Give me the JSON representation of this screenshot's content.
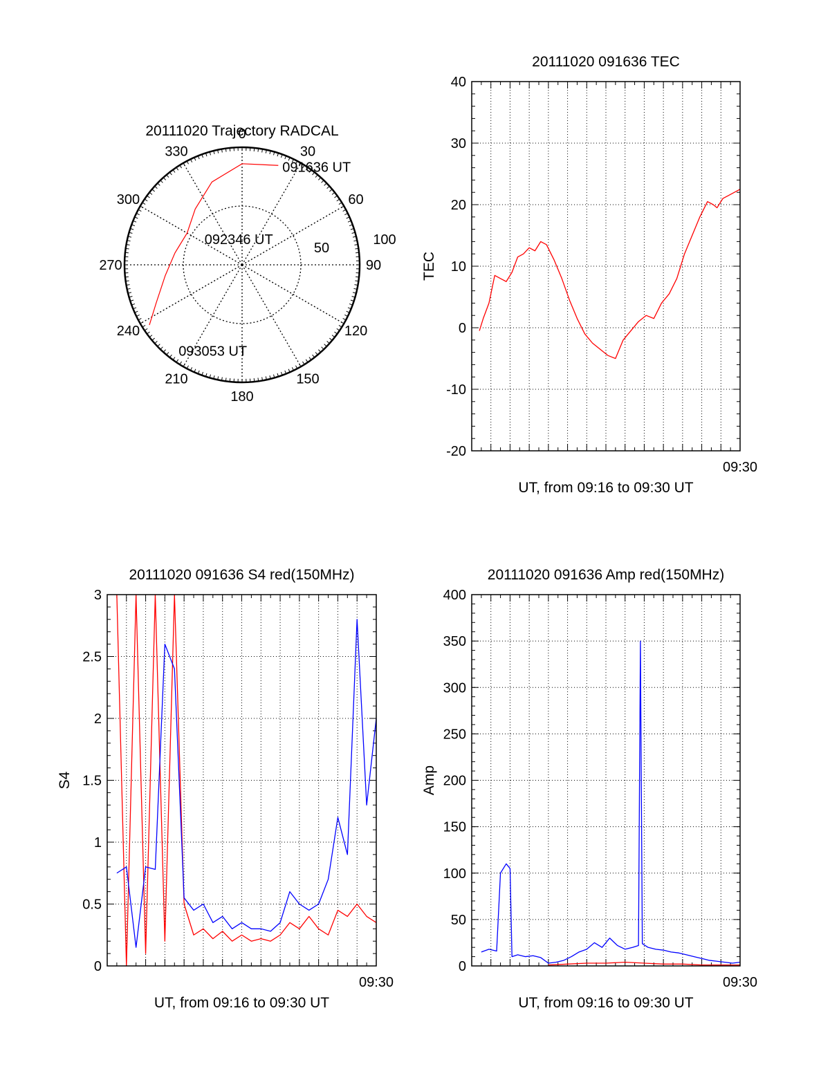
{
  "colors": {
    "red": "#ff0000",
    "blue": "#0000ff",
    "axis": "#000000",
    "grid": "#000000"
  },
  "chart_data": [
    {
      "id": "polar",
      "type": "polar",
      "title": "20111020 Trajectory RADCAL",
      "azimuth_labels": [
        "0",
        "30",
        "60",
        "90",
        "120",
        "150",
        "180",
        "210",
        "240",
        "270",
        "300",
        "330"
      ],
      "elevation_rings": [
        0,
        50,
        100
      ],
      "ring_labels": [
        "50",
        "100"
      ],
      "trajectory": {
        "color": "red",
        "points": [
          {
            "az": 20,
            "zen": 90
          },
          {
            "az": 0,
            "zen": 86
          },
          {
            "az": 340,
            "zen": 75
          },
          {
            "az": 320,
            "zen": 62
          },
          {
            "az": 300,
            "zen": 54
          },
          {
            "az": 280,
            "zen": 58
          },
          {
            "az": 262,
            "zen": 66
          },
          {
            "az": 246,
            "zen": 80
          },
          {
            "az": 237,
            "zen": 94
          }
        ],
        "annotations": [
          {
            "text": "091636 UT",
            "az": 18,
            "zen": 88
          },
          {
            "text": "092346 UT",
            "az": 300,
            "zen": 45
          },
          {
            "text": "093053 UT",
            "az": 220,
            "zen": 95
          }
        ]
      }
    },
    {
      "id": "tec",
      "type": "line",
      "title": "20111020 091636 TEC",
      "xlabel": "UT, from 09:16 to 09:30 UT",
      "ylabel": "TEC",
      "xlim": [
        0,
        14
      ],
      "ylim": [
        -20,
        40
      ],
      "yticks": [
        -20,
        -10,
        0,
        10,
        20,
        30,
        40
      ],
      "xtick_label": "09:30",
      "series": [
        {
          "name": "TEC",
          "color": "red",
          "x": [
            0.4,
            0.6,
            0.9,
            1.2,
            1.5,
            1.8,
            2.1,
            2.4,
            2.7,
            3.0,
            3.3,
            3.6,
            3.9,
            4.3,
            4.7,
            5.1,
            5.5,
            5.9,
            6.3,
            6.7,
            7.1,
            7.5,
            7.9,
            8.3,
            8.7,
            9.1,
            9.5,
            9.9,
            10.3,
            10.7,
            11.1,
            11.5,
            11.9,
            12.3,
            12.6,
            12.8,
            13.1,
            13.4,
            13.7,
            14.0
          ],
          "y": [
            -0.5,
            1.5,
            4,
            8.5,
            8,
            7.5,
            9,
            11.5,
            12,
            13,
            12.5,
            14,
            13.5,
            11,
            8,
            4.5,
            1.5,
            -1,
            -2.5,
            -3.5,
            -4.5,
            -5,
            -2,
            -0.5,
            1,
            2,
            1.5,
            4,
            5.5,
            8,
            12,
            15,
            18,
            20.5,
            20,
            19.5,
            21,
            21.5,
            22,
            22.5
          ]
        }
      ]
    },
    {
      "id": "s4",
      "type": "line",
      "title": "20111020 091636 S4 red(150MHz)",
      "xlabel": "UT, from 09:16 to 09:30 UT",
      "ylabel": "S4",
      "xlim": [
        0,
        14
      ],
      "ylim": [
        0,
        3
      ],
      "yticks": [
        0,
        0.5,
        1,
        1.5,
        2,
        2.5,
        3
      ],
      "ytick_labels": [
        "0",
        "0.5",
        "1",
        "1.5",
        "2",
        "2.5",
        "3"
      ],
      "xtick_label": "09:30",
      "series": [
        {
          "name": "red",
          "color": "red",
          "x": [
            0.5,
            1.0,
            1.5,
            2.0,
            2.5,
            3.0,
            3.5,
            4.0,
            4.5,
            5.0,
            5.5,
            6.0,
            6.5,
            7.0,
            7.5,
            8.0,
            8.5,
            9.0,
            9.5,
            10.0,
            10.5,
            11.0,
            11.5,
            12.0,
            12.5,
            13.0,
            13.5,
            14.0
          ],
          "y": [
            3.0,
            0.0,
            3.0,
            0.1,
            3.0,
            0.2,
            3.0,
            0.5,
            0.25,
            0.3,
            0.22,
            0.28,
            0.2,
            0.25,
            0.2,
            0.22,
            0.2,
            0.25,
            0.35,
            0.3,
            0.4,
            0.3,
            0.25,
            0.45,
            0.4,
            0.5,
            0.4,
            0.35
          ]
        },
        {
          "name": "blue",
          "color": "blue",
          "x": [
            0.5,
            1.0,
            1.5,
            2.0,
            2.5,
            3.0,
            3.5,
            4.0,
            4.5,
            5.0,
            5.5,
            6.0,
            6.5,
            7.0,
            7.5,
            8.0,
            8.5,
            9.0,
            9.5,
            10.0,
            10.5,
            11.0,
            11.5,
            12.0,
            12.5,
            13.0,
            13.5,
            14.0
          ],
          "y": [
            0.75,
            0.8,
            0.15,
            0.8,
            0.78,
            2.6,
            2.4,
            0.55,
            0.45,
            0.5,
            0.35,
            0.4,
            0.3,
            0.35,
            0.3,
            0.3,
            0.28,
            0.35,
            0.6,
            0.5,
            0.45,
            0.5,
            0.7,
            1.2,
            0.9,
            2.8,
            1.3,
            2.0
          ]
        }
      ]
    },
    {
      "id": "amp",
      "type": "line",
      "title": "20111020 091636 Amp red(150MHz)",
      "xlabel": "UT, from 09:16 to 09:30 UT",
      "ylabel": "Amp",
      "xlim": [
        0,
        14
      ],
      "ylim": [
        0,
        400
      ],
      "yticks": [
        0,
        50,
        100,
        150,
        200,
        250,
        300,
        350,
        400
      ],
      "xtick_label": "09:30",
      "series": [
        {
          "name": "blue",
          "color": "blue",
          "x": [
            0.5,
            0.9,
            1.3,
            1.5,
            1.8,
            2.0,
            2.1,
            2.4,
            2.8,
            3.2,
            3.6,
            4.0,
            4.4,
            4.8,
            5.2,
            5.6,
            6.0,
            6.4,
            6.8,
            7.2,
            7.6,
            8.0,
            8.4,
            8.7,
            8.8,
            8.9,
            9.2,
            9.6,
            10.0,
            10.4,
            10.8,
            11.2,
            11.6,
            12.0,
            12.4,
            12.8,
            13.2,
            13.6,
            14.0
          ],
          "y": [
            15,
            18,
            16,
            100,
            110,
            105,
            10,
            12,
            10,
            11,
            9,
            3,
            4,
            6,
            10,
            15,
            18,
            25,
            20,
            30,
            22,
            18,
            20,
            22,
            350,
            24,
            20,
            18,
            17,
            15,
            14,
            12,
            10,
            8,
            6,
            5,
            4,
            3,
            4
          ]
        },
        {
          "name": "red",
          "color": "red",
          "x": [
            4.0,
            5.0,
            6.0,
            7.0,
            8.0,
            9.0,
            10.0,
            11.0,
            12.0,
            13.0,
            14.0
          ],
          "y": [
            1,
            2,
            3,
            3,
            4,
            3,
            2,
            2,
            1,
            1,
            1
          ]
        }
      ]
    }
  ]
}
